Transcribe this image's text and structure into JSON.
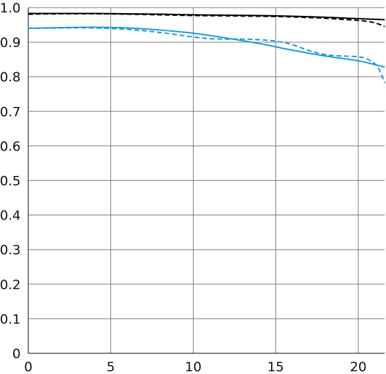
{
  "chart_data": {
    "type": "line",
    "title": "",
    "xlabel": "",
    "ylabel": "",
    "xlim": [
      0,
      21.6
    ],
    "ylim": [
      0,
      1.0
    ],
    "x_ticks": [
      "0",
      "5",
      "10",
      "15",
      "20"
    ],
    "y_ticks": [
      "0",
      "0.1",
      "0.2",
      "0.3",
      "0.4",
      "0.5",
      "0.6",
      "0.7",
      "0.8",
      "0.9",
      "1.0"
    ],
    "grid": true,
    "legend": "none",
    "series": [
      {
        "color": "#000000",
        "style": "solid",
        "x": [
          0,
          2,
          4,
          6,
          8,
          10,
          12,
          14,
          16,
          18,
          20,
          21.6
        ],
        "y": [
          0.983,
          0.983,
          0.983,
          0.982,
          0.981,
          0.979,
          0.978,
          0.977,
          0.975,
          0.972,
          0.968,
          0.965
        ]
      },
      {
        "color": "#000000",
        "style": "dashed",
        "x": [
          0,
          2,
          4,
          6,
          8,
          10,
          12,
          14,
          16,
          18,
          19,
          20,
          20.7,
          21.2,
          21.6
        ],
        "y": [
          0.981,
          0.982,
          0.982,
          0.981,
          0.979,
          0.977,
          0.976,
          0.975,
          0.973,
          0.969,
          0.966,
          0.963,
          0.959,
          0.953,
          0.945
        ]
      },
      {
        "color": "#1a9ad6",
        "style": "solid",
        "x": [
          0,
          2,
          4,
          6,
          8,
          10,
          12,
          14,
          16,
          18,
          20,
          21.6
        ],
        "y": [
          0.94,
          0.942,
          0.943,
          0.941,
          0.935,
          0.926,
          0.912,
          0.896,
          0.877,
          0.86,
          0.846,
          0.828
        ]
      },
      {
        "color": "#1a9ad6",
        "style": "dashed",
        "x": [
          0,
          2,
          4,
          6,
          8,
          10,
          11,
          12,
          13,
          14,
          15,
          16,
          17,
          18,
          19,
          20,
          20.5,
          21.0,
          21.3,
          21.6
        ],
        "y": [
          0.94,
          0.941,
          0.941,
          0.937,
          0.928,
          0.915,
          0.91,
          0.909,
          0.909,
          0.907,
          0.903,
          0.893,
          0.876,
          0.864,
          0.86,
          0.858,
          0.852,
          0.838,
          0.818,
          0.782
        ]
      }
    ]
  }
}
